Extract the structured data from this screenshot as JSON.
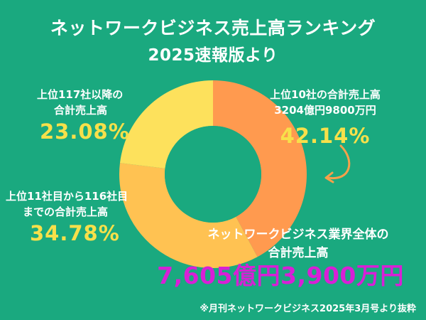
{
  "title": {
    "line1": "ネットワークビジネス売上高ランキング",
    "line2": "2025速報版より"
  },
  "colors": {
    "background": "#1aa97f",
    "top10": "#ff9a4f",
    "rank11to116": "#ffc252",
    "rank117plus": "#fde15c",
    "percent_text": "#f7e04a",
    "total_text": "#d81fd6"
  },
  "labels": {
    "top10": {
      "name": "上位10社の合計売上高",
      "amount": "3204億円9800万円",
      "percent": "42.14%"
    },
    "rank117plus": {
      "name_line1": "上位117社以降の",
      "name_line2": "合計売上高",
      "percent": "23.08%"
    },
    "rank11to116": {
      "name_line1": "上位11社目から116社目",
      "name_line2": "までの合計売上高",
      "percent": "34.78%"
    }
  },
  "industry": {
    "line1": "ネットワークビジネス業界全体の",
    "line2": "合計売上高",
    "total": "7,605億円3,900万円"
  },
  "source": "※月刊ネットワークビジネス2025年3月号より抜粋",
  "chart_data": {
    "type": "pie",
    "categories": [
      "上位10社の合計売上高",
      "上位11社目から116社目までの合計売上高",
      "上位117社以降の合計売上高"
    ],
    "values": [
      42.14,
      34.78,
      23.08
    ],
    "colors": [
      "#ff9a4f",
      "#ffc252",
      "#fde15c"
    ]
  }
}
